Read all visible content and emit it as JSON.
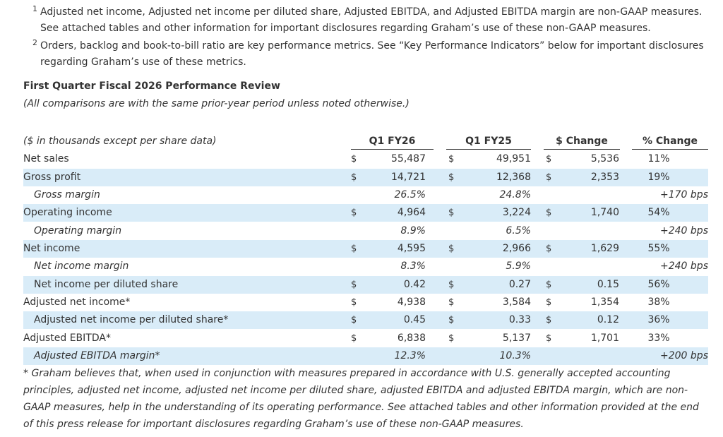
{
  "footnotes": [
    {
      "marker": "1",
      "text": "Adjusted net income, Adjusted net income per diluted share, Adjusted EBITDA, and Adjusted EBITDA margin are non-GAAP measures. See attached tables and other information for important disclosures regarding Graham’s use of these non-GAAP measures."
    },
    {
      "marker": "2",
      "text": "Orders, backlog and book-to-bill ratio are key performance metrics. See “Key Performance Indicators” below for important disclosures regarding Graham’s use of these metrics."
    }
  ],
  "section": {
    "title": "First Quarter Fiscal 2026 Performance Review",
    "subtitle": "(All comparisons are with the same prior-year period unless noted otherwise.)"
  },
  "table": {
    "header_label": "($ in thousands except per share data)",
    "columns": [
      "Q1 FY26",
      "Q1 FY25",
      "$ Change",
      "% Change"
    ],
    "rows": [
      {
        "label": "Net sales",
        "c1": "$",
        "v1": "55,487",
        "c2": "$",
        "v2": "49,951",
        "c3": "$",
        "v3": "5,536",
        "v4": "11%"
      },
      {
        "label": "Gross profit",
        "c1": "$",
        "v1": "14,721",
        "c2": "$",
        "v2": "12,368",
        "c3": "$",
        "v3": "2,353",
        "v4": "19%"
      },
      {
        "label": "Gross margin",
        "v1": "26.5%",
        "v2": "24.8%",
        "v4": "+170 bps"
      },
      {
        "label": "Operating income",
        "c1": "$",
        "v1": "4,964",
        "c2": "$",
        "v2": "3,224",
        "c3": "$",
        "v3": "1,740",
        "v4": "54%"
      },
      {
        "label": "Operating margin",
        "v1": "8.9%",
        "v2": "6.5%",
        "v4": "+240 bps"
      },
      {
        "label": "Net income",
        "c1": "$",
        "v1": "4,595",
        "c2": "$",
        "v2": "2,966",
        "c3": "$",
        "v3": "1,629",
        "v4": "55%"
      },
      {
        "label": "Net income margin",
        "v1": "8.3%",
        "v2": "5.9%",
        "v4": "+240 bps"
      },
      {
        "label": "Net income per diluted share",
        "c1": "$",
        "v1": "0.42",
        "c2": "$",
        "v2": "0.27",
        "c3": "$",
        "v3": "0.15",
        "v4": "56%"
      },
      {
        "label": "Adjusted net income*",
        "c1": "$",
        "v1": "4,938",
        "c2": "$",
        "v2": "3,584",
        "c3": "$",
        "v3": "1,354",
        "v4": "38%"
      },
      {
        "label": "Adjusted net income per diluted share*",
        "c1": "$",
        "v1": "0.45",
        "c2": "$",
        "v2": "0.33",
        "c3": "$",
        "v3": "0.12",
        "v4": "36%"
      },
      {
        "label": "Adjusted EBITDA*",
        "c1": "$",
        "v1": "6,838",
        "c2": "$",
        "v2": "5,137",
        "c3": "$",
        "v3": "1,701",
        "v4": "33%"
      },
      {
        "label": "Adjusted EBITDA margin*",
        "v1": "12.3%",
        "v2": "10.3%",
        "v4": "+200 bps"
      }
    ]
  },
  "note": "* Graham believes that, when used in conjunction with measures prepared in accordance with U.S. generally accepted accounting principles, adjusted net income, adjusted net income per diluted share, adjusted EBITDA and adjusted EBITDA margin, which are non-GAAP measures, help in the understanding of its operating performance. See attached tables and other information provided at the end of this press release for important disclosures regarding Graham’s use of these non-GAAP measures.",
  "colors": {
    "row_shade": "#d9ecf8",
    "text": "#333333"
  }
}
